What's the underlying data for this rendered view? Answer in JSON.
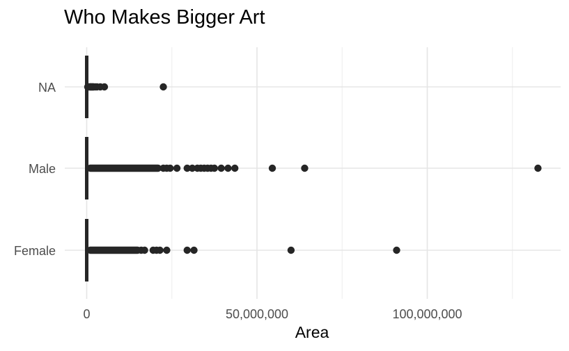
{
  "chart_data": {
    "type": "scatter",
    "title": "Who Makes Bigger Art",
    "xlabel": "Area",
    "ylabel": "",
    "xlim": [
      -2000000,
      140000000
    ],
    "x_major_ticks": [
      0,
      50000000,
      100000000
    ],
    "x_tick_labels": [
      "0",
      "50,000,000",
      "100,000,000"
    ],
    "x_minor_ticks": [
      25000000,
      75000000,
      125000000
    ],
    "grid": true,
    "categories": [
      "NA",
      "Male",
      "Female"
    ],
    "series": [
      {
        "category": "NA",
        "color": "#262626",
        "dense_range": [
          0,
          3000000
        ],
        "points": [
          300000,
          600000,
          900000,
          1200000,
          1600000,
          2000000,
          2500000,
          3000000,
          4000000,
          5200000,
          22500000
        ]
      },
      {
        "category": "Male",
        "color": "#262626",
        "dense_range": [
          0,
          22000000
        ],
        "points": [
          22500000,
          23500000,
          24500000,
          26500000,
          29500000,
          31000000,
          32500000,
          33500000,
          34500000,
          35500000,
          36500000,
          37500000,
          39500000,
          41500000,
          43500000,
          54500000,
          64000000,
          132500000
        ]
      },
      {
        "category": "Female",
        "color": "#262626",
        "dense_range": [
          0,
          16000000
        ],
        "points": [
          16000000,
          17000000,
          19500000,
          20500000,
          21500000,
          23500000,
          29500000,
          31500000,
          60000000,
          91000000
        ]
      }
    ]
  }
}
